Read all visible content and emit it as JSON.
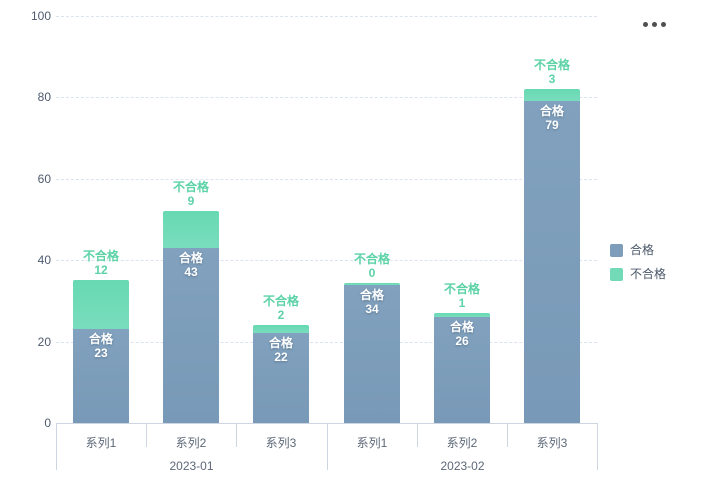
{
  "toolbar": {
    "more_icon": "ellipsis-horizontal"
  },
  "legend": {
    "position": "right",
    "items": [
      {
        "label": "合格",
        "color": "#7d9dba"
      },
      {
        "label": "不合格",
        "color": "#72dab6"
      }
    ]
  },
  "chart_data": {
    "type": "bar",
    "stacked": true,
    "title": "",
    "xlabel": "",
    "ylabel": "",
    "categories": [
      "系列1",
      "系列2",
      "系列3",
      "系列1",
      "系列2",
      "系列3"
    ],
    "groups": [
      {
        "label": "2023-01",
        "start": 0,
        "end": 2
      },
      {
        "label": "2023-02",
        "start": 3,
        "end": 5
      }
    ],
    "series": [
      {
        "name": "合格",
        "color": "#7d9dba",
        "values": [
          23,
          43,
          22,
          34,
          26,
          79
        ]
      },
      {
        "name": "不合格",
        "color": "#72dab6",
        "values": [
          12,
          9,
          2,
          0,
          1,
          3
        ]
      }
    ],
    "totals": [
      35,
      52,
      24,
      34,
      27,
      82
    ],
    "ylim": [
      0,
      100
    ],
    "yticks": [
      0,
      20,
      40,
      60,
      80,
      100
    ],
    "grid": true,
    "grid_style": "dashed",
    "bar_labels": true,
    "legend_position": "right"
  }
}
